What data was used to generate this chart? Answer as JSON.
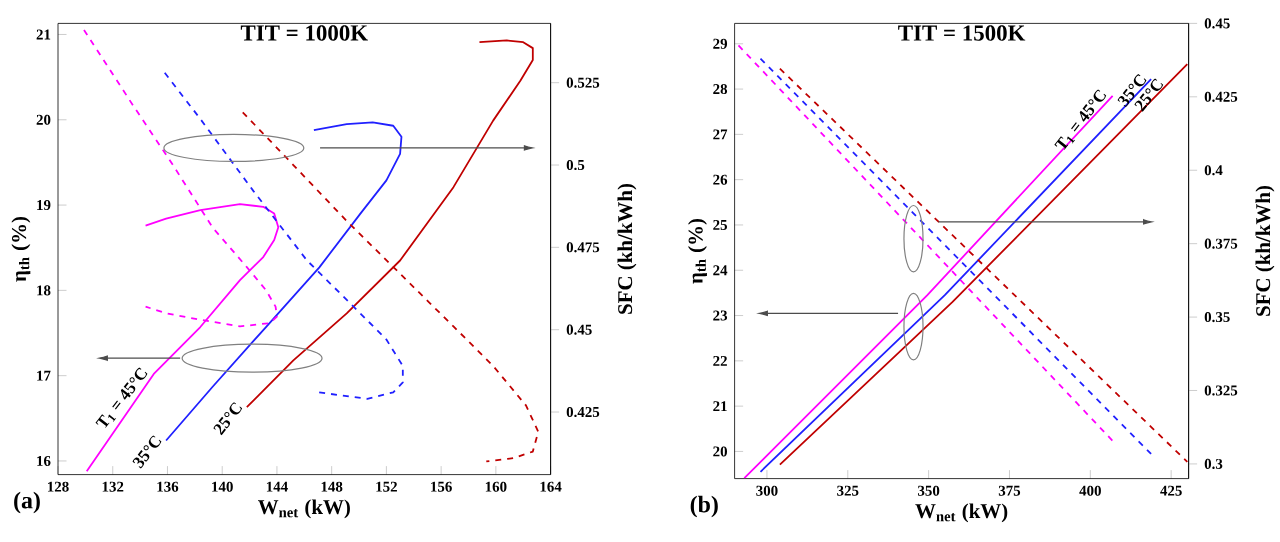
{
  "chart_data": [
    {
      "type": "line",
      "title": "TIT = 1000K",
      "xlabel": "W$_{net}$ (kW)",
      "ylabel": "η$_{th}$ (%)",
      "y2label": "SFC (kh/kWh)",
      "xlim": [
        128,
        164
      ],
      "xticks": [
        128,
        132,
        136,
        140,
        144,
        148,
        152,
        156,
        160,
        164
      ],
      "ylim": [
        15.84,
        21.13
      ],
      "yticks": [
        16,
        17,
        18,
        19,
        20,
        21
      ],
      "y2lim": [
        0.406,
        0.543
      ],
      "y2ticks": [
        0.425,
        0.45,
        0.475,
        0.5,
        0.525
      ],
      "series": [
        {
          "color": "#ff00ff",
          "line_style": "solid",
          "x": [
            130.1,
            135.0,
            138.4,
            141.3,
            143.0,
            143.8,
            144.1,
            143.8,
            143.0,
            141.3,
            138.4,
            135.9,
            134.4
          ],
          "values": [
            15.88,
            17.02,
            17.57,
            18.12,
            18.39,
            18.59,
            18.74,
            18.9,
            18.98,
            19.01,
            18.94,
            18.84,
            18.76
          ]
        },
        {
          "color": "#2020ff",
          "line_style": "solid",
          "x": [
            135.9,
            139.3,
            143.2,
            147.1,
            150.1,
            152.0,
            153.0,
            153.1,
            152.5,
            151.0,
            149.1,
            146.7
          ],
          "values": [
            16.24,
            16.87,
            17.57,
            18.27,
            18.9,
            19.29,
            19.6,
            19.8,
            19.93,
            19.97,
            19.95,
            19.88
          ]
        },
        {
          "color": "#c00000",
          "line_style": "solid",
          "x": [
            141.8,
            145.2,
            149.1,
            153.0,
            156.9,
            159.8,
            161.8,
            162.7,
            162.7,
            162.0,
            160.8,
            158.8
          ],
          "values": [
            16.63,
            17.18,
            17.73,
            18.35,
            19.21,
            19.99,
            20.46,
            20.7,
            20.84,
            20.91,
            20.93,
            20.91
          ]
        },
        {
          "color": "#ff00ff",
          "line_style": "dashed",
          "axis": "y2",
          "x": [
            129.9,
            133.5,
            136.4,
            139.3,
            141.8,
            143.2,
            143.9,
            144.0,
            143.5,
            141.3,
            138.4,
            135.9,
            134.4
          ],
          "values": [
            0.541,
            0.518,
            0.5,
            0.481,
            0.469,
            0.462,
            0.457,
            0.454,
            0.452,
            0.451,
            0.453,
            0.455,
            0.457
          ]
        },
        {
          "color": "#2020ff",
          "line_style": "dashed",
          "axis": "y2",
          "x": [
            135.8,
            138.4,
            142.3,
            146.2,
            149.6,
            152.0,
            153.2,
            153.2,
            152.5,
            150.6,
            147.0
          ],
          "values": [
            0.528,
            0.514,
            0.492,
            0.471,
            0.457,
            0.447,
            0.439,
            0.434,
            0.431,
            0.429,
            0.431
          ]
        },
        {
          "color": "#c00000",
          "line_style": "dashed",
          "axis": "y2",
          "x": [
            141.5,
            145.2,
            149.1,
            153.0,
            156.9,
            159.8,
            162.2,
            163.1,
            162.7,
            161.3,
            159.3
          ],
          "values": [
            0.516,
            0.5,
            0.483,
            0.467,
            0.451,
            0.439,
            0.427,
            0.419,
            0.413,
            0.411,
            0.41
          ]
        }
      ],
      "annotations": [
        {
          "text": "T$_{1}$ = 45°C",
          "x": 135.0,
          "y": 17.02
        },
        {
          "text": "35°C",
          "x": 135.9,
          "y": 16.24
        },
        {
          "text": "25°C",
          "x": 141.8,
          "y": 16.63
        },
        "(a)"
      ]
    },
    {
      "type": "line",
      "title": "TIT = 1500K",
      "xlabel": "W$_{net}$ (kW)",
      "ylabel": "η$_{th}$ (%)",
      "y2label": "SFC (kh/kWh)",
      "xlim": [
        290,
        430.4
      ],
      "xticks": [
        300,
        325,
        350,
        375,
        400,
        425
      ],
      "ylim": [
        19.4,
        29.45
      ],
      "yticks": [
        20,
        21,
        22,
        23,
        24,
        25,
        26,
        27,
        28,
        29
      ],
      "y2lim": [
        0.295,
        0.45
      ],
      "y2ticks": [
        0.3,
        0.325,
        0.35,
        0.375,
        0.4,
        0.425,
        0.45
      ],
      "series": [
        {
          "color": "#ff00ff",
          "line_style": "solid",
          "x": [
            293.0,
            349.6,
            406.9
          ],
          "values": [
            19.41,
            23.45,
            27.85
          ]
        },
        {
          "color": "#2020ff",
          "line_style": "solid",
          "x": [
            298.0,
            355.0,
            418.8
          ],
          "values": [
            19.55,
            23.45,
            28.22
          ]
        },
        {
          "color": "#c00000",
          "line_style": "solid",
          "x": [
            304.0,
            357.4,
            430.0
          ],
          "values": [
            19.71,
            23.3,
            28.55
          ]
        },
        {
          "color": "#ff00ff",
          "line_style": "dashed",
          "axis": "y2",
          "x": [
            291.2,
            407.2
          ],
          "values": [
            0.4425,
            0.3075
          ]
        },
        {
          "color": "#2020ff",
          "line_style": "dashed",
          "axis": "y2",
          "x": [
            298.0,
            418.8
          ],
          "values": [
            0.438,
            0.3034
          ]
        },
        {
          "color": "#c00000",
          "line_style": "dashed",
          "axis": "y2",
          "x": [
            304.0,
            430.0
          ],
          "values": [
            0.4346,
            0.3007
          ]
        }
      ],
      "annotations": [
        {
          "text": "T$_{1}$ = 45°C",
          "x": 406.9,
          "y": 27.85
        },
        {
          "text": "35°C",
          "x": 418.8,
          "y": 28.22
        },
        {
          "text": "25°C",
          "x": 424.0,
          "y": 28.12
        },
        "(b)"
      ]
    }
  ]
}
